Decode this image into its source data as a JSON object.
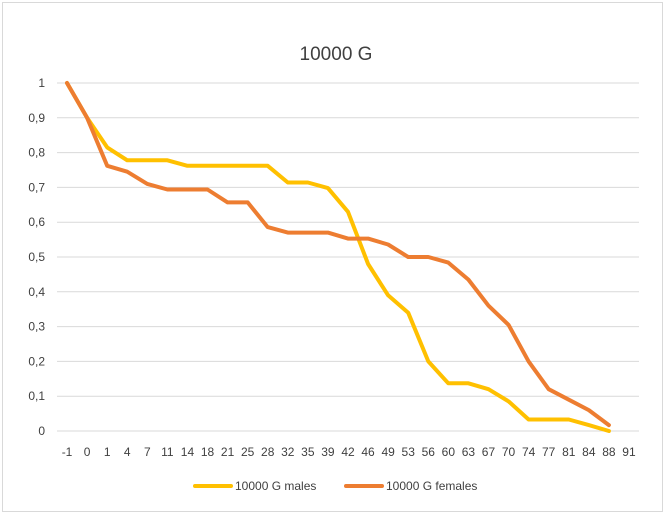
{
  "chart_data": {
    "type": "line",
    "title": "10000 G",
    "xlabel": "",
    "ylabel": "",
    "categories": [
      "-1",
      "0",
      "1",
      "4",
      "7",
      "11",
      "14",
      "18",
      "21",
      "25",
      "28",
      "32",
      "35",
      "39",
      "42",
      "46",
      "49",
      "53",
      "56",
      "60",
      "63",
      "67",
      "70",
      "74",
      "77",
      "81",
      "84",
      "88",
      "91"
    ],
    "y_ticks": [
      "0",
      "0,1",
      "0,2",
      "0,3",
      "0,4",
      "0,5",
      "0,6",
      "0,7",
      "0,8",
      "0,9",
      "1"
    ],
    "ylim": [
      0,
      1
    ],
    "grid": "horizontal",
    "legend_position": "bottom",
    "series": [
      {
        "name": "10000 G males",
        "color": "#FFC000",
        "values": [
          1,
          0.9,
          0.815,
          0.778,
          0.778,
          0.778,
          0.762,
          0.762,
          0.762,
          0.762,
          0.762,
          0.714,
          0.714,
          0.698,
          0.63,
          0.48,
          0.39,
          0.34,
          0.2,
          0.137,
          0.137,
          0.12,
          0.085,
          0.033,
          0.033,
          0.033,
          0.017,
          0.0,
          null
        ]
      },
      {
        "name": "10000 G females",
        "color": "#ED7D31",
        "values": [
          1,
          0.9,
          0.762,
          0.745,
          0.71,
          0.694,
          0.694,
          0.694,
          0.657,
          0.657,
          0.586,
          0.57,
          0.57,
          0.57,
          0.553,
          0.553,
          0.536,
          0.5,
          0.5,
          0.484,
          0.435,
          0.36,
          0.305,
          0.2,
          0.12,
          0.09,
          0.06,
          0.017,
          null
        ]
      }
    ]
  }
}
